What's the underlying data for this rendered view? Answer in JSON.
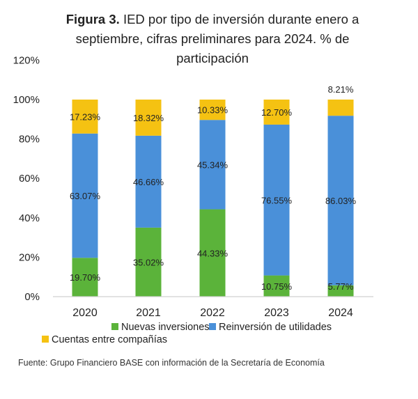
{
  "chart_data": {
    "type": "bar",
    "stacked": true,
    "title_bold": "Figura 3.",
    "title": "IED por tipo de inversión durante enero a septiembre, cifras preliminares para 2024. % de participación",
    "xlabel": "",
    "ylabel": "",
    "categories": [
      "2020",
      "2021",
      "2022",
      "2023",
      "2024"
    ],
    "ylim": [
      0,
      120
    ],
    "yticks": [
      "0%",
      "20%",
      "40%",
      "60%",
      "80%",
      "100%",
      "120%"
    ],
    "grid": false,
    "legend_position": "bottom",
    "series": [
      {
        "name": "Nuevas inversiones",
        "color": "#5bb33a",
        "values": [
          19.7,
          35.02,
          44.33,
          10.75,
          5.77
        ],
        "labels": [
          "19.70%",
          "35.02%",
          "44.33%",
          "10.75%",
          "5.77%"
        ]
      },
      {
        "name": "Reinversión de utilidades",
        "color": "#4a90d9",
        "values": [
          63.07,
          46.66,
          45.34,
          76.55,
          86.03
        ],
        "labels": [
          "63.07%",
          "46.66%",
          "45.34%",
          "76.55%",
          "86.03%"
        ]
      },
      {
        "name": "Cuentas entre compañías",
        "color": "#f5c212",
        "values": [
          17.23,
          18.32,
          10.33,
          12.7,
          8.21
        ],
        "labels": [
          "17.23%",
          "18.32%",
          "10.33%",
          "12.70%",
          "8.21%"
        ]
      }
    ],
    "source": "Fuente: Grupo Financiero BASE con información de la Secretaría de Economía"
  }
}
